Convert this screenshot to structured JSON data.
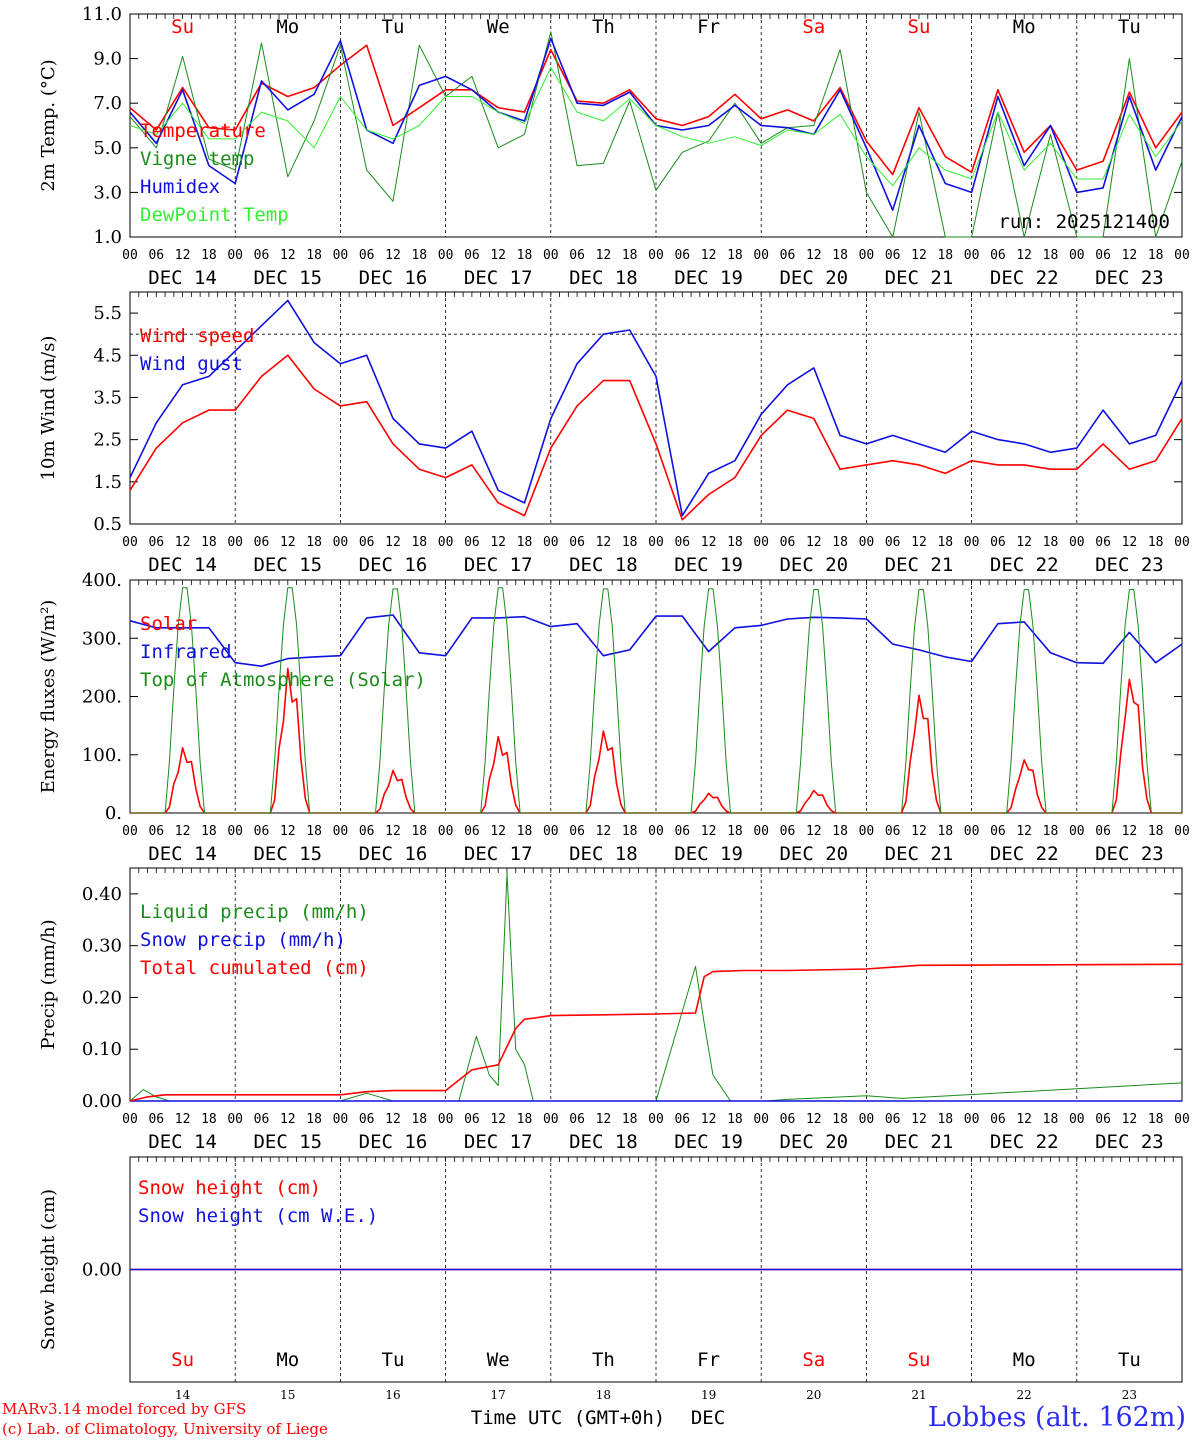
{
  "run_label": "run: 2025121400",
  "x_axis": {
    "hour_ticks": [
      "00",
      "06",
      "12",
      "18"
    ],
    "date_labels": [
      "DEC 14",
      "DEC 15",
      "DEC 16",
      "DEC 17",
      "DEC 18",
      "DEC 19",
      "DEC 20",
      "DEC 21",
      "DEC 22",
      "DEC 23"
    ],
    "weekdays": [
      "Su",
      "Mo",
      "Tu",
      "We",
      "Th",
      "Fr",
      "Sa",
      "Su",
      "Mo",
      "Tu"
    ],
    "weekday_colors": [
      "#ff0000",
      "#000000",
      "#000000",
      "#000000",
      "#000000",
      "#000000",
      "#ff0000",
      "#ff0000",
      "#000000",
      "#000000"
    ],
    "day_numbers": [
      "14",
      "15",
      "16",
      "17",
      "18",
      "19",
      "20",
      "21",
      "22",
      "23"
    ],
    "title": "Time UTC (GMT+0h)",
    "month": "DEC"
  },
  "footer": {
    "model": "MARv3.14 model forced by GFS",
    "copyright": "(c) Lab. of Climatology, University of Liege",
    "station": "Lobbes (alt. 162m)"
  },
  "colors": {
    "red": "#ff0000",
    "darkgreen": "#1a8c1a",
    "blue": "#1010e0",
    "lightgreen": "#33ee33"
  },
  "chart_data": [
    {
      "type": "line",
      "ylabel": "2m Temp. (°C)",
      "ylim": [
        1,
        11
      ],
      "yticks": [
        "1.0",
        "3.0",
        "5.0",
        "7.0",
        "9.0",
        "11.0"
      ],
      "xlim_hours": [
        0,
        240
      ],
      "series": [
        {
          "name": "Temperature",
          "color": "#ff0000",
          "x": [
            0,
            6,
            12,
            18,
            24,
            30,
            36,
            42,
            48,
            54,
            60,
            66,
            72,
            78,
            84,
            90,
            96,
            102,
            108,
            114,
            120,
            126,
            132,
            138,
            144,
            150,
            156,
            162,
            168,
            174,
            180,
            186,
            192,
            198,
            204,
            210,
            216,
            222,
            228,
            234,
            240
          ],
          "values": [
            6.8,
            5.8,
            7.7,
            5.9,
            5.8,
            7.9,
            7.3,
            7.7,
            8.7,
            9.6,
            6.0,
            6.8,
            7.6,
            7.6,
            6.8,
            6.6,
            9.4,
            7.1,
            7.0,
            7.6,
            6.3,
            6.0,
            6.4,
            7.4,
            6.3,
            6.7,
            6.2,
            7.7,
            5.3,
            3.8,
            6.8,
            4.6,
            3.9,
            7.6,
            4.8,
            6.0,
            4.0,
            4.4,
            7.5,
            5.0,
            6.6
          ]
        },
        {
          "name": "Vigne temp",
          "color": "#1a8c1a",
          "x": [
            0,
            6,
            12,
            18,
            24,
            30,
            36,
            42,
            48,
            54,
            60,
            66,
            72,
            78,
            84,
            90,
            96,
            102,
            108,
            114,
            120,
            126,
            132,
            138,
            144,
            150,
            156,
            162,
            168,
            174,
            180,
            186,
            192,
            198,
            204,
            210,
            216,
            222,
            228,
            234,
            240
          ],
          "values": [
            6.4,
            5.0,
            9.1,
            4.5,
            4.0,
            9.7,
            3.7,
            6.2,
            9.6,
            4.0,
            2.6,
            9.6,
            7.3,
            8.2,
            5.0,
            5.6,
            10.2,
            4.2,
            4.3,
            7.1,
            3.1,
            4.8,
            5.3,
            7.0,
            5.2,
            5.9,
            6.0,
            9.4,
            3.0,
            1.0,
            6.6,
            1.0,
            1.0,
            6.6,
            1.0,
            5.6,
            1.0,
            1.0,
            9.0,
            1.0,
            4.4
          ]
        },
        {
          "name": "Humidex",
          "color": "#1010e0",
          "x": [
            0,
            6,
            12,
            18,
            24,
            30,
            36,
            42,
            48,
            54,
            60,
            66,
            72,
            78,
            84,
            90,
            96,
            102,
            108,
            114,
            120,
            126,
            132,
            138,
            144,
            150,
            156,
            162,
            168,
            174,
            180,
            186,
            192,
            198,
            204,
            210,
            216,
            222,
            228,
            234,
            240
          ],
          "values": [
            6.6,
            5.2,
            7.6,
            4.2,
            3.4,
            8.0,
            6.7,
            7.4,
            9.8,
            5.8,
            5.2,
            7.8,
            8.2,
            7.6,
            6.6,
            6.2,
            9.9,
            7.0,
            6.9,
            7.5,
            6.0,
            5.8,
            6.0,
            6.9,
            6.0,
            5.9,
            5.6,
            7.6,
            5.0,
            2.2,
            6.0,
            3.4,
            3.0,
            7.3,
            4.2,
            6.0,
            3.0,
            3.2,
            7.3,
            4.0,
            6.4
          ]
        },
        {
          "name": "DewPoint Temp",
          "color": "#33ee33",
          "x": [
            0,
            6,
            12,
            18,
            24,
            30,
            36,
            42,
            48,
            54,
            60,
            66,
            72,
            78,
            84,
            90,
            96,
            102,
            108,
            114,
            120,
            126,
            132,
            138,
            144,
            150,
            156,
            162,
            168,
            174,
            180,
            186,
            192,
            198,
            204,
            210,
            216,
            222,
            228,
            234,
            240
          ],
          "values": [
            6.0,
            5.6,
            7.0,
            5.4,
            5.4,
            6.6,
            6.2,
            5.0,
            7.3,
            5.8,
            5.4,
            6.0,
            7.3,
            7.3,
            6.6,
            6.1,
            8.6,
            6.6,
            6.2,
            7.2,
            6.0,
            5.5,
            5.2,
            5.5,
            5.1,
            5.8,
            5.6,
            6.5,
            4.6,
            3.3,
            5.0,
            4.0,
            3.6,
            6.6,
            4.0,
            5.2,
            3.6,
            3.6,
            6.5,
            4.6,
            6.2
          ]
        }
      ]
    },
    {
      "type": "line",
      "ylabel": "10m Wind (m/s)",
      "ylim": [
        0.5,
        6.0
      ],
      "yticks": [
        "0.5",
        "1.5",
        "2.5",
        "3.5",
        "4.5",
        "5.5"
      ],
      "reference_line": 5.0,
      "xlim_hours": [
        0,
        240
      ],
      "series": [
        {
          "name": "Wind speed",
          "color": "#ff0000",
          "x": [
            0,
            6,
            12,
            18,
            24,
            30,
            36,
            42,
            48,
            54,
            60,
            66,
            72,
            78,
            84,
            90,
            96,
            102,
            108,
            114,
            120,
            126,
            132,
            138,
            144,
            150,
            156,
            162,
            168,
            174,
            180,
            186,
            192,
            198,
            204,
            210,
            216,
            222,
            228,
            234,
            240
          ],
          "values": [
            1.3,
            2.3,
            2.9,
            3.2,
            3.2,
            4.0,
            4.5,
            3.7,
            3.3,
            3.4,
            2.4,
            1.8,
            1.6,
            1.9,
            1.0,
            0.7,
            2.3,
            3.3,
            3.9,
            3.9,
            2.4,
            0.6,
            1.2,
            1.6,
            2.6,
            3.2,
            3.0,
            1.8,
            1.9,
            2.0,
            1.9,
            1.7,
            2.0,
            1.9,
            1.9,
            1.8,
            1.8,
            2.4,
            1.8,
            2.0,
            3.0
          ]
        },
        {
          "name": "Wind gust",
          "color": "#1010e0",
          "x": [
            0,
            6,
            12,
            18,
            24,
            30,
            36,
            42,
            48,
            54,
            60,
            66,
            72,
            78,
            84,
            90,
            96,
            102,
            108,
            114,
            120,
            126,
            132,
            138,
            144,
            150,
            156,
            162,
            168,
            174,
            180,
            186,
            192,
            198,
            204,
            210,
            216,
            222,
            228,
            234,
            240
          ],
          "values": [
            1.6,
            2.9,
            3.8,
            4.0,
            4.6,
            5.2,
            5.8,
            4.8,
            4.3,
            4.5,
            3.0,
            2.4,
            2.3,
            2.7,
            1.3,
            1.0,
            3.0,
            4.3,
            5.0,
            5.1,
            4.0,
            0.7,
            1.7,
            2.0,
            3.1,
            3.8,
            4.2,
            2.6,
            2.4,
            2.6,
            2.4,
            2.2,
            2.7,
            2.5,
            2.4,
            2.2,
            2.3,
            3.2,
            2.4,
            2.6,
            3.9
          ]
        }
      ]
    },
    {
      "type": "line",
      "ylabel": "Energy fluxes (W/m²)",
      "ylim": [
        0,
        400
      ],
      "yticks": [
        "0.",
        "100.",
        "200.",
        "300.",
        "400."
      ],
      "xlim_hours": [
        0,
        240
      ],
      "series": [
        {
          "name": "Solar",
          "color": "#ff0000",
          "daily_peak": [
            115,
            255,
            75,
            135,
            145,
            35,
            40,
            210,
            95,
            240
          ]
        },
        {
          "name": "Infrared",
          "color": "#1010e0",
          "x": [
            0,
            6,
            12,
            18,
            24,
            30,
            36,
            42,
            48,
            54,
            60,
            66,
            72,
            78,
            84,
            90,
            96,
            102,
            108,
            114,
            120,
            126,
            132,
            138,
            144,
            150,
            156,
            162,
            168,
            174,
            180,
            186,
            192,
            198,
            204,
            210,
            216,
            222,
            228,
            234,
            240
          ],
          "values": [
            330,
            318,
            318,
            318,
            258,
            252,
            265,
            268,
            270,
            335,
            340,
            275,
            270,
            335,
            335,
            337,
            320,
            325,
            270,
            280,
            338,
            338,
            277,
            318,
            322,
            333,
            336,
            335,
            333,
            290,
            280,
            268,
            260,
            325,
            328,
            275,
            258,
            257,
            310,
            258,
            290
          ]
        },
        {
          "name": "Top of Atmosphere (Solar)",
          "color": "#1a8c1a",
          "daily_peak": [
            395,
            395,
            393,
            395,
            393,
            393,
            392,
            392,
            392,
            392
          ]
        }
      ]
    },
    {
      "type": "line",
      "ylabel": "Precip (mm/h)",
      "ylim": [
        0,
        0.45
      ],
      "yticks": [
        "0.00",
        "0.10",
        "0.20",
        "0.30",
        "0.40"
      ],
      "xlim_hours": [
        0,
        240
      ],
      "series": [
        {
          "name": "Liquid precip (mm/h)",
          "color": "#1a8c1a",
          "x": [
            0,
            3,
            6,
            9,
            12,
            48,
            54,
            60,
            75,
            79,
            82,
            84,
            86,
            88,
            90,
            92,
            96,
            120,
            129,
            131,
            133,
            137,
            145,
            150,
            168,
            176,
            240
          ],
          "values": [
            0,
            0.022,
            0.008,
            0,
            0,
            0,
            0.015,
            0,
            0,
            0.125,
            0.05,
            0.03,
            0.44,
            0.1,
            0.07,
            0,
            0,
            0,
            0.26,
            0.15,
            0.05,
            0,
            0,
            0.003,
            0.01,
            0.005,
            0.035
          ]
        },
        {
          "name": "Snow precip (mm/h)",
          "color": "#1010e0",
          "x": [
            0,
            240
          ],
          "values": [
            0,
            0
          ]
        },
        {
          "name": "Total cumulated (cm)",
          "color": "#ff0000",
          "x": [
            0,
            4,
            8,
            12,
            48,
            54,
            60,
            72,
            78,
            84,
            88,
            90,
            92,
            96,
            120,
            129,
            131,
            133,
            140,
            150,
            168,
            180,
            240
          ],
          "values": [
            0,
            0.008,
            0.012,
            0.012,
            0.012,
            0.018,
            0.02,
            0.02,
            0.06,
            0.07,
            0.14,
            0.158,
            0.16,
            0.165,
            0.168,
            0.17,
            0.24,
            0.25,
            0.252,
            0.252,
            0.255,
            0.262,
            0.264
          ]
        }
      ]
    },
    {
      "type": "line",
      "ylabel": "Snow height (cm)",
      "ylim": [
        -1,
        1
      ],
      "yticks": [
        "0.00"
      ],
      "xlim_hours": [
        0,
        240
      ],
      "series": [
        {
          "name": "Snow height (cm)",
          "color": "#ff0000",
          "x": [
            0,
            240
          ],
          "values": [
            0,
            0
          ]
        },
        {
          "name": "Snow height (cm W.E.)",
          "color": "#1010e0",
          "x": [
            0,
            240
          ],
          "values": [
            0,
            0
          ]
        }
      ]
    }
  ]
}
